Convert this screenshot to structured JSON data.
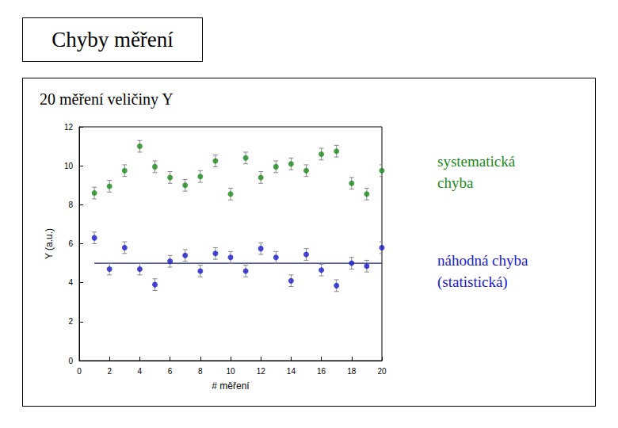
{
  "title": "Chyby měření",
  "subtitle": "20 měření veličiny Y",
  "chart_data": {
    "type": "scatter",
    "x_label": "# měření",
    "y_label": "Y (a.u.)",
    "xlim": [
      0,
      20
    ],
    "xticks": [
      0,
      2,
      4,
      6,
      8,
      10,
      12,
      14,
      16,
      18,
      20
    ],
    "ylim": [
      0,
      12
    ],
    "yticks": [
      0,
      2,
      4,
      6,
      8,
      10,
      12
    ],
    "grid": false,
    "x": [
      1,
      2,
      3,
      4,
      5,
      6,
      7,
      8,
      9,
      10,
      11,
      12,
      13,
      14,
      15,
      16,
      17,
      18,
      19,
      20
    ],
    "series": [
      {
        "name": "systematická chyba",
        "color": "#1a8a1a",
        "marker": "circle",
        "values": [
          8.6,
          8.95,
          9.75,
          11.0,
          9.95,
          9.4,
          9.0,
          9.45,
          10.25,
          8.55,
          10.4,
          9.4,
          9.95,
          10.1,
          9.75,
          10.6,
          10.75,
          9.1,
          8.55,
          9.75
        ],
        "errors": [
          0.3,
          0.3,
          0.3,
          0.3,
          0.3,
          0.3,
          0.3,
          0.3,
          0.3,
          0.3,
          0.3,
          0.3,
          0.3,
          0.3,
          0.3,
          0.3,
          0.3,
          0.3,
          0.3,
          0.3
        ]
      },
      {
        "name": "náhodná chyba (statistická)",
        "color": "#1a1acc",
        "marker": "circle",
        "values": [
          6.3,
          4.7,
          5.8,
          4.7,
          3.9,
          5.1,
          5.4,
          4.6,
          5.5,
          5.3,
          4.6,
          5.75,
          5.3,
          4.1,
          5.45,
          4.65,
          3.85,
          5.0,
          4.85,
          5.8
        ],
        "errors": [
          0.3,
          0.3,
          0.3,
          0.3,
          0.3,
          0.3,
          0.3,
          0.3,
          0.3,
          0.3,
          0.3,
          0.3,
          0.3,
          0.3,
          0.3,
          0.3,
          0.3,
          0.3,
          0.3,
          0.3
        ]
      }
    ],
    "lines": [
      {
        "x": [
          1,
          20
        ],
        "y": [
          5,
          5
        ],
        "color": "#1a237e"
      }
    ],
    "annotations": [
      {
        "text": [
          "systematická",
          "chyba"
        ],
        "color": "#1a8a1a"
      },
      {
        "text": [
          "náhodná chyba",
          "(statistická)"
        ],
        "color": "#1a1acc"
      }
    ]
  }
}
